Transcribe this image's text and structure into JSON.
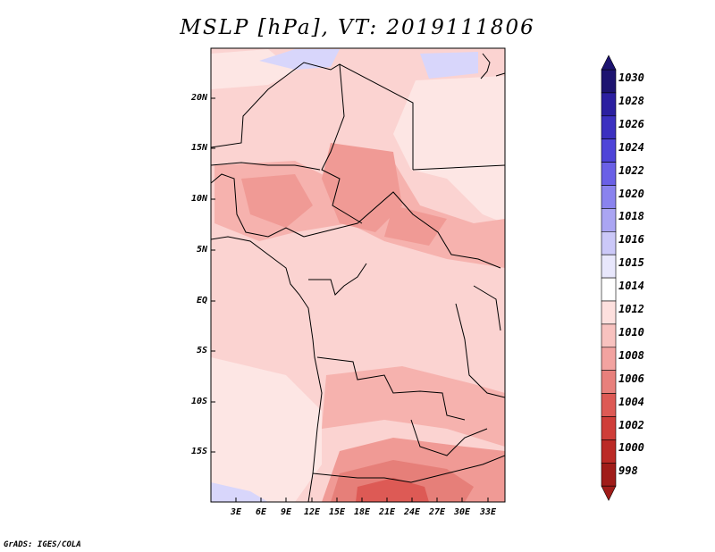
{
  "title": "MSLP [hPa], VT: 2019111806",
  "footer": "GrADS: IGES/COLA",
  "axes": {
    "y_ticks": [
      "20N",
      "15N",
      "10N",
      "5N",
      "EQ",
      "5S",
      "10S",
      "15S"
    ],
    "x_ticks": [
      "3E",
      "6E",
      "9E",
      "12E",
      "15E",
      "18E",
      "21E",
      "24E",
      "27E",
      "30E",
      "33E"
    ]
  },
  "colorbar": {
    "labels": [
      "1030",
      "1028",
      "1026",
      "1024",
      "1022",
      "1020",
      "1018",
      "1016",
      "1015",
      "1014",
      "1012",
      "1010",
      "1008",
      "1006",
      "1004",
      "1002",
      "1000",
      "998"
    ],
    "colors": [
      "#1d1470",
      "#2b1fa0",
      "#3b30c0",
      "#4e44d8",
      "#6a60e6",
      "#8a83ee",
      "#aaa5f2",
      "#cbc8f8",
      "#e8e7fc",
      "#ffffff",
      "#fde0de",
      "#f8c2bf",
      "#f2a3a0",
      "#e8807c",
      "#dd5a55",
      "#cf3e39",
      "#bb2a26",
      "#a01c19"
    ]
  },
  "map_colors": {
    "p1012": "#fbd3d1",
    "p1014": "#fde6e4",
    "p1010": "#f6b2ae",
    "p1008": "#f09a95",
    "p1006": "#e67f79",
    "p1004": "#dd5a55",
    "p1016": "#d8d6fb"
  }
}
